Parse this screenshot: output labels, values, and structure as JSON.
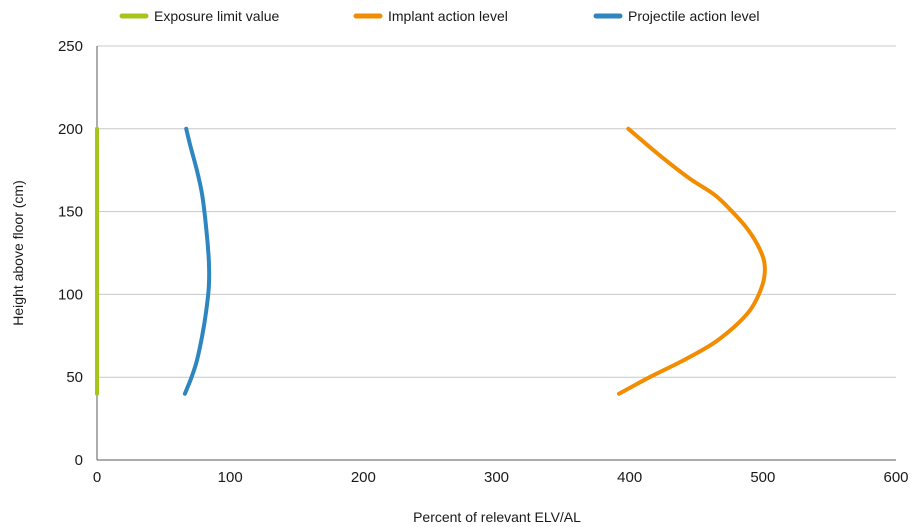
{
  "chart_data": {
    "type": "line",
    "title": "",
    "xlabel": "Percent of relevant ELV/AL",
    "ylabel": "Height above floor (cm)",
    "xlim": [
      0,
      600
    ],
    "ylim": [
      0,
      250
    ],
    "xticks": [
      0,
      100,
      200,
      300,
      400,
      500,
      600
    ],
    "yticks": [
      0,
      50,
      100,
      150,
      200,
      250
    ],
    "grid": "horizontal",
    "legend_position": "top",
    "series": [
      {
        "name": "Exposure limit value",
        "color": "#a6c51b",
        "points": [
          {
            "x": 0,
            "y": 40
          },
          {
            "x": 0,
            "y": 200
          }
        ]
      },
      {
        "name": "Implant action level",
        "color": "#f28c00",
        "points": [
          {
            "x": 392,
            "y": 40
          },
          {
            "x": 415,
            "y": 50
          },
          {
            "x": 440,
            "y": 60
          },
          {
            "x": 462,
            "y": 70
          },
          {
            "x": 478,
            "y": 80
          },
          {
            "x": 490,
            "y": 90
          },
          {
            "x": 497,
            "y": 100
          },
          {
            "x": 501,
            "y": 110
          },
          {
            "x": 501,
            "y": 120
          },
          {
            "x": 496,
            "y": 130
          },
          {
            "x": 488,
            "y": 140
          },
          {
            "x": 477,
            "y": 150
          },
          {
            "x": 464,
            "y": 160
          },
          {
            "x": 445,
            "y": 170
          },
          {
            "x": 424,
            "y": 183
          },
          {
            "x": 399,
            "y": 200
          }
        ]
      },
      {
        "name": "Projectile action level",
        "color": "#2e86c1",
        "points": [
          {
            "x": 66,
            "y": 40
          },
          {
            "x": 71,
            "y": 50
          },
          {
            "x": 75,
            "y": 60
          },
          {
            "x": 79,
            "y": 75
          },
          {
            "x": 82,
            "y": 90
          },
          {
            "x": 84,
            "y": 105
          },
          {
            "x": 84,
            "y": 120
          },
          {
            "x": 82,
            "y": 140
          },
          {
            "x": 79,
            "y": 160
          },
          {
            "x": 75,
            "y": 175
          },
          {
            "x": 70,
            "y": 190
          },
          {
            "x": 67,
            "y": 200
          }
        ]
      }
    ]
  }
}
